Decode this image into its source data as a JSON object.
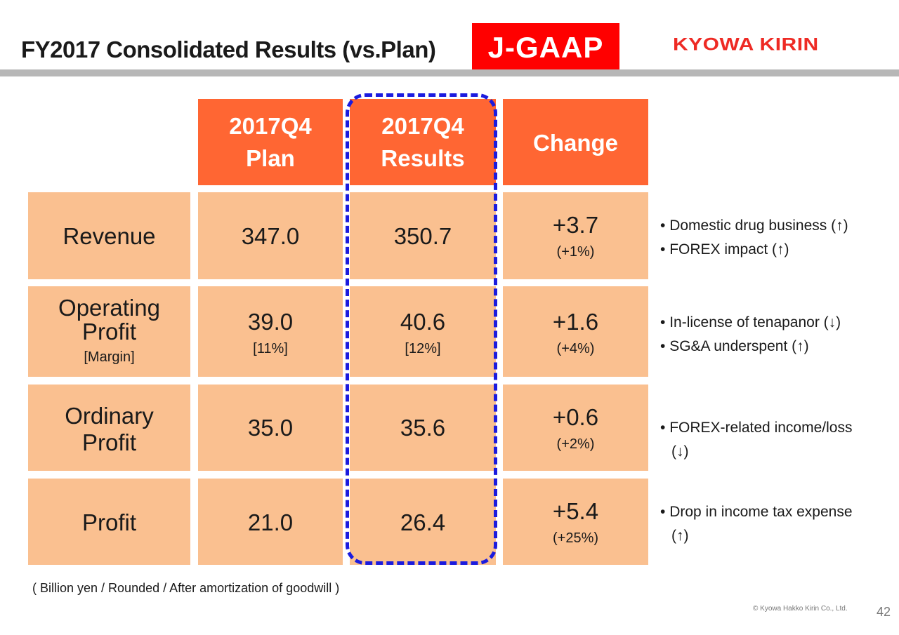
{
  "title": "FY2017 Consolidated Results (vs.Plan)",
  "badge": "J-GAAP",
  "logo": "KYOWA KIRIN",
  "table": {
    "headers": [
      {
        "line1": "2017Q4",
        "line2": "Plan"
      },
      {
        "line1": "2017Q4",
        "line2": "Results"
      },
      {
        "line1": "Change",
        "line2": ""
      }
    ],
    "rows": [
      {
        "label1": "Revenue",
        "label2": "",
        "sub": "",
        "plan": "347.0",
        "plan_sub": "",
        "results": "350.7",
        "results_sub": "",
        "change": "+3.7",
        "change_sub": "(+1%)",
        "notes": [
          "Domestic drug business (↑)",
          "FOREX impact (↑)"
        ]
      },
      {
        "label1": "Operating",
        "label2": "Profit",
        "sub": "[Margin]",
        "plan": "39.0",
        "plan_sub": "[11%]",
        "results": "40.6",
        "results_sub": "[12%]",
        "change": "+1.6",
        "change_sub": "(+4%)",
        "notes": [
          "In-license of tenapanor (↓)",
          "SG&A underspent (↑)"
        ]
      },
      {
        "label1": "Ordinary",
        "label2": "Profit",
        "sub": "",
        "plan": "35.0",
        "plan_sub": "",
        "results": "35.6",
        "results_sub": "",
        "change": "+0.6",
        "change_sub": "(+2%)",
        "notes": [
          "FOREX-related income/loss",
          "(↓)"
        ]
      },
      {
        "label1": "Profit",
        "label2": "",
        "sub": "",
        "plan": "21.0",
        "plan_sub": "",
        "results": "26.4",
        "results_sub": "",
        "change": "+5.4",
        "change_sub": "(+25%)",
        "notes": [
          "Drop in income tax expense",
          "(↑)"
        ]
      }
    ]
  },
  "footnote": "( Billion yen / Rounded / After amortization of goodwill )",
  "copyright": "© Kyowa Hakko Kirin Co., Ltd.",
  "page_number": "42"
}
